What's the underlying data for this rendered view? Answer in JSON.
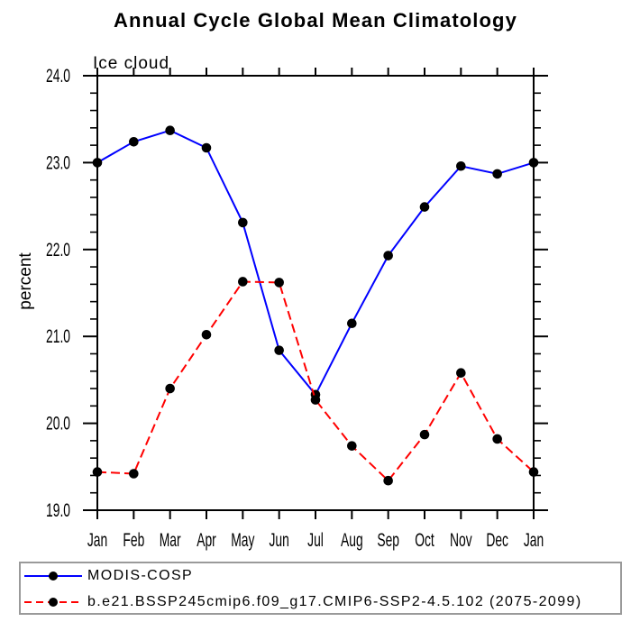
{
  "window": {
    "background": "#ffffff"
  },
  "chart_data": {
    "type": "line",
    "title": "Annual Cycle Global Mean Climatology",
    "subtitle": "Ice cloud",
    "ylabel": "percent",
    "xlabel": "",
    "ylim": [
      19.0,
      24.0
    ],
    "ytick_interval": 1.0,
    "yminor_interval": 0.2,
    "ytick_labels": [
      "19.0",
      "20.0",
      "21.0",
      "22.0",
      "23.0",
      "24.0"
    ],
    "categories": [
      "Jan",
      "Feb",
      "Mar",
      "Apr",
      "May",
      "Jun",
      "Jul",
      "Aug",
      "Sep",
      "Oct",
      "Nov",
      "Dec",
      "Jan"
    ],
    "grid": false,
    "legend_position": "bottom-left-box",
    "axis_color": "#000000",
    "marker": "filled-circle",
    "marker_color": "#000000",
    "series": [
      {
        "name": "MODIS-COSP",
        "color": "#0000ff",
        "line_style": "solid",
        "values": [
          23.0,
          23.24,
          23.37,
          23.17,
          22.31,
          20.84,
          20.33,
          21.15,
          21.93,
          22.49,
          22.96,
          22.87,
          23.0
        ]
      },
      {
        "name": "b.e21.BSSP245cmip6.f09_g17.CMIP6-SSP2-4.5.102 (2075-2099)",
        "color": "#ff0000",
        "line_style": "dashed",
        "values": [
          19.44,
          19.42,
          20.4,
          21.02,
          21.63,
          21.62,
          20.27,
          19.74,
          19.34,
          19.87,
          20.58,
          19.82,
          19.44
        ]
      }
    ]
  }
}
